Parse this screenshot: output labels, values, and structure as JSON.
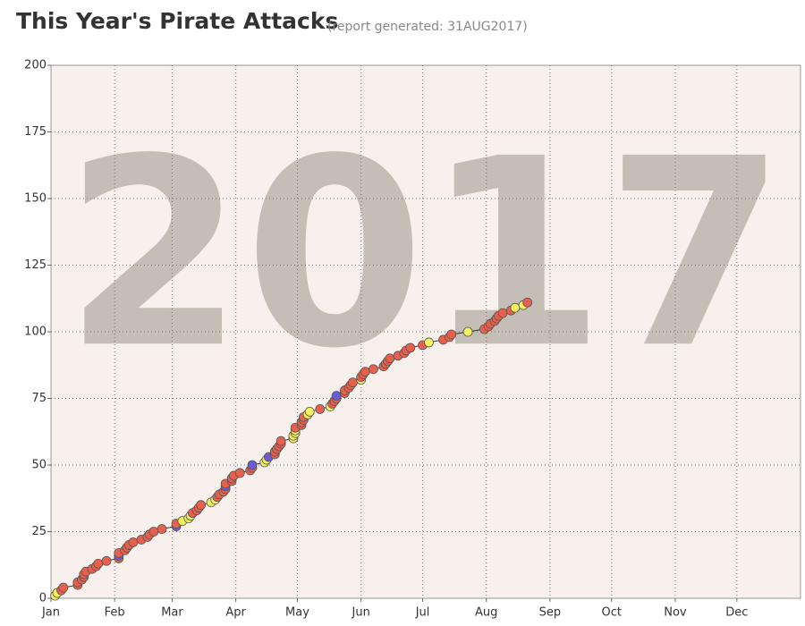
{
  "chart_data": {
    "type": "line",
    "title": "This Year's Pirate Attacks",
    "subtitle": "(report generated: 31AUG2017)",
    "watermark": "2017",
    "xlim": [
      1,
      366
    ],
    "xticks": [
      {
        "value": 1,
        "label": "Jan"
      },
      {
        "value": 32,
        "label": "Feb"
      },
      {
        "value": 60,
        "label": "Mar"
      },
      {
        "value": 91,
        "label": "Apr"
      },
      {
        "value": 121,
        "label": "May"
      },
      {
        "value": 152,
        "label": "Jun"
      },
      {
        "value": 182,
        "label": "Jul"
      },
      {
        "value": 213,
        "label": "Aug"
      },
      {
        "value": 244,
        "label": "Sep"
      },
      {
        "value": 274,
        "label": "Oct"
      },
      {
        "value": 305,
        "label": "Nov"
      },
      {
        "value": 335,
        "label": "Dec"
      }
    ],
    "ylim": [
      0,
      200
    ],
    "yticks": [
      0,
      25,
      50,
      75,
      100,
      125,
      150,
      175,
      200
    ],
    "grid": true,
    "line_color": "#333333",
    "x": [
      3,
      4,
      6,
      7,
      14,
      14,
      16,
      17,
      17,
      18,
      21,
      23,
      24,
      28,
      34,
      34,
      34,
      37,
      38,
      39,
      41,
      45,
      48,
      49,
      51,
      55,
      62,
      62,
      65,
      68,
      69,
      70,
      72,
      73,
      74,
      79,
      81,
      82,
      83,
      85,
      86,
      86,
      86,
      89,
      89,
      90,
      93,
      98,
      99,
      99,
      105,
      106,
      107,
      110,
      110,
      111,
      112,
      113,
      113,
      119,
      119,
      120,
      120,
      120,
      123,
      123,
      124,
      124,
      126,
      127,
      132,
      137,
      138,
      139,
      140,
      140,
      144,
      144,
      146,
      147,
      148,
      152,
      152,
      153,
      154,
      158,
      163,
      164,
      165,
      166,
      170,
      173,
      174,
      176,
      182,
      185,
      192,
      195,
      196,
      204,
      212,
      214,
      215,
      217,
      218,
      219,
      221,
      225,
      227,
      231,
      233
    ],
    "values": [
      1,
      2,
      3,
      4,
      5,
      6,
      7,
      8,
      9,
      10,
      11,
      12,
      13,
      14,
      15,
      16,
      17,
      18,
      19,
      20,
      21,
      22,
      23,
      24,
      25,
      26,
      27,
      28,
      29,
      30,
      31,
      32,
      33,
      34,
      35,
      36,
      37,
      38,
      39,
      40,
      41,
      42,
      43,
      44,
      45,
      46,
      47,
      48,
      49,
      50,
      51,
      52,
      53,
      54,
      55,
      56,
      57,
      58,
      59,
      60,
      61,
      62,
      63,
      64,
      65,
      66,
      67,
      68,
      69,
      70,
      71,
      72,
      73,
      74,
      75,
      76,
      77,
      78,
      79,
      80,
      81,
      82,
      83,
      84,
      85,
      86,
      87,
      88,
      89,
      90,
      91,
      92,
      93,
      94,
      95,
      96,
      97,
      98,
      99,
      100,
      101,
      102,
      103,
      104,
      105,
      106,
      107,
      108,
      109,
      110,
      111
    ],
    "point_colors": [
      "#f5f060",
      "#f5f060",
      "#e8604c",
      "#e8604c",
      "#e8604c",
      "#e8604c",
      "#e8604c",
      "#e8604c",
      "#e8604c",
      "#e8604c",
      "#e8604c",
      "#e8604c",
      "#e8604c",
      "#e8604c",
      "#e8604c",
      "#6b5bd6",
      "#e8604c",
      "#e8604c",
      "#e8604c",
      "#e8604c",
      "#e8604c",
      "#e8604c",
      "#e8604c",
      "#e8604c",
      "#e8604c",
      "#e8604c",
      "#6b5bd6",
      "#e8604c",
      "#f5f060",
      "#f5f060",
      "#f5f060",
      "#e8604c",
      "#e8604c",
      "#e8604c",
      "#e8604c",
      "#f5f060",
      "#f5f060",
      "#e8604c",
      "#e8604c",
      "#e8604c",
      "#e8604c",
      "#6b5bd6",
      "#e8604c",
      "#e8604c",
      "#e8604c",
      "#e8604c",
      "#e8604c",
      "#e8604c",
      "#e8604c",
      "#6b5bd6",
      "#f5f060",
      "#f5f060",
      "#6b5bd6",
      "#e8604c",
      "#e8604c",
      "#e8604c",
      "#e8604c",
      "#e8604c",
      "#e8604c",
      "#f5f060",
      "#f5f060",
      "#f5f060",
      "#f5f060",
      "#e8604c",
      "#e8604c",
      "#e8604c",
      "#e8604c",
      "#e8604c",
      "#f5f060",
      "#f5f060",
      "#e8604c",
      "#f5f060",
      "#e8604c",
      "#e8604c",
      "#e8604c",
      "#6b5bd6",
      "#e8604c",
      "#e8604c",
      "#e8604c",
      "#e8604c",
      "#e8604c",
      "#f5f060",
      "#e8604c",
      "#e8604c",
      "#e8604c",
      "#e8604c",
      "#e8604c",
      "#e8604c",
      "#e8604c",
      "#e8604c",
      "#e8604c",
      "#e8604c",
      "#e8604c",
      "#e8604c",
      "#e8604c",
      "#f5f060",
      "#e8604c",
      "#e8604c",
      "#e8604c",
      "#f5f060",
      "#e8604c",
      "#e8604c",
      "#e8604c",
      "#e8604c",
      "#e8604c",
      "#e8604c",
      "#e8604c",
      "#e8604c",
      "#f5f060",
      "#f5f060",
      "#e8604c"
    ]
  }
}
